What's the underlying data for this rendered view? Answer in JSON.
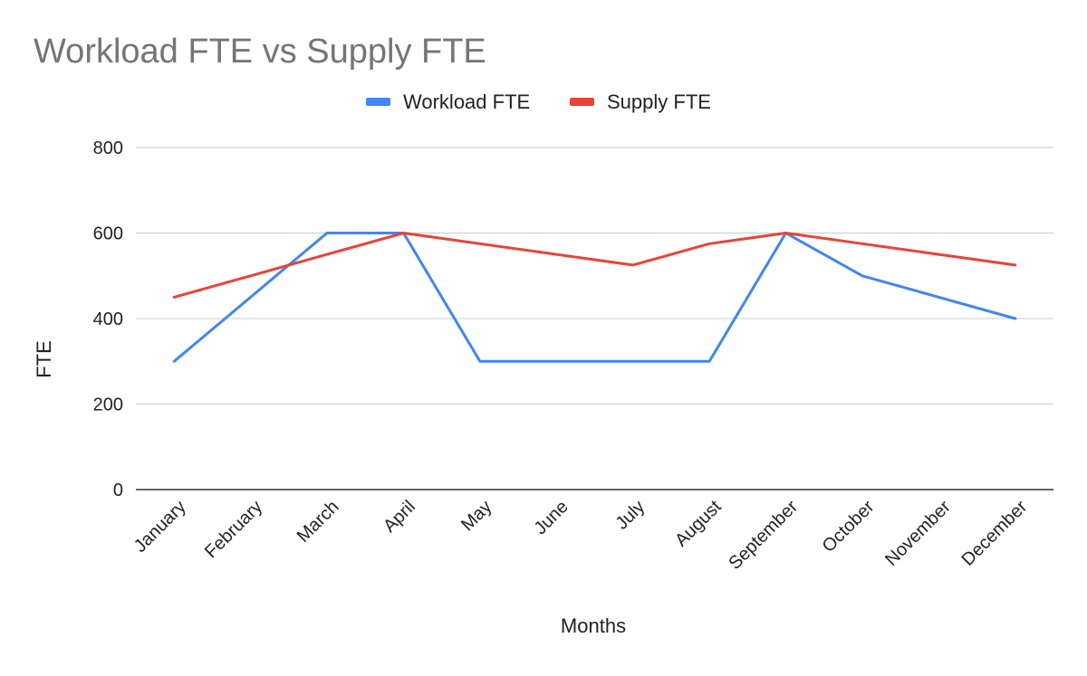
{
  "chart_data": {
    "type": "line",
    "title": "Workload FTE vs Supply FTE",
    "xlabel": "Months",
    "ylabel": "FTE",
    "categories": [
      "January",
      "February",
      "March",
      "April",
      "May",
      "June",
      "July",
      "August",
      "September",
      "October",
      "November",
      "December"
    ],
    "series": [
      {
        "name": "Workload FTE",
        "color": "#4285f4",
        "values": [
          300,
          450,
          600,
          600,
          300,
          300,
          300,
          300,
          600,
          500,
          450,
          400
        ]
      },
      {
        "name": "Supply FTE",
        "color": "#ea4335",
        "values": [
          450,
          500,
          550,
          600,
          575,
          550,
          525,
          575,
          600,
          575,
          550,
          525
        ]
      }
    ],
    "ylim": [
      0,
      800
    ],
    "yticks": [
      0,
      200,
      400,
      600,
      800
    ],
    "grid": true,
    "legend_position": "top-center"
  }
}
